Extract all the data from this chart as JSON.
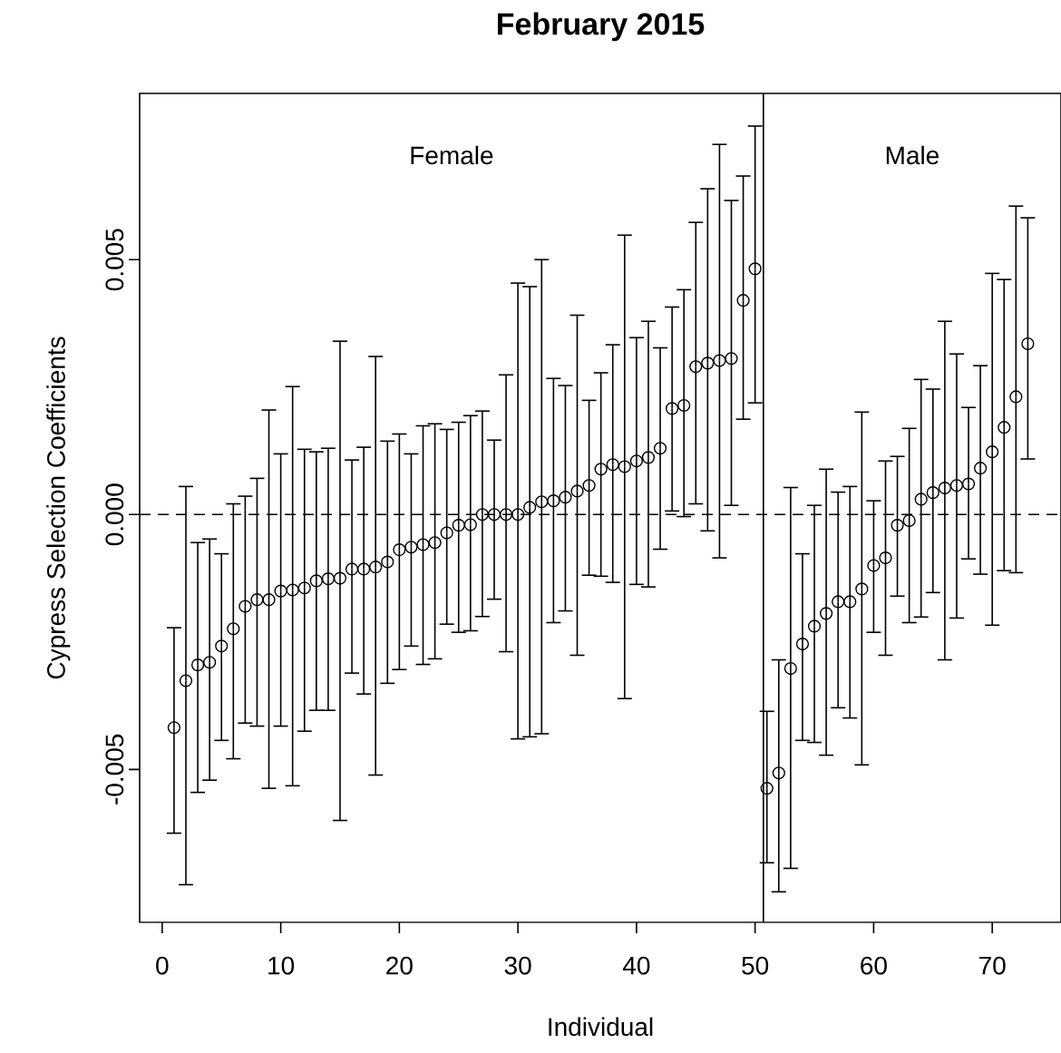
{
  "chart_data": {
    "type": "scatter",
    "title": "February 2015",
    "xlabel": "Individual",
    "ylabel": "Cypress Selection Coefficients",
    "annotations": [
      "Female",
      "Male"
    ],
    "x": [
      1,
      2,
      3,
      4,
      5,
      6,
      7,
      8,
      9,
      10,
      11,
      12,
      13,
      14,
      15,
      16,
      17,
      18,
      19,
      20,
      21,
      22,
      23,
      24,
      25,
      26,
      27,
      28,
      29,
      30,
      31,
      32,
      33,
      34,
      35,
      36,
      37,
      38,
      39,
      40,
      41,
      42,
      43,
      44,
      45,
      46,
      47,
      48,
      49,
      50,
      51,
      52,
      53,
      54,
      55,
      56,
      57,
      58,
      59,
      60,
      61,
      62,
      63,
      64,
      65,
      66,
      67,
      68,
      69,
      70,
      71,
      72,
      73
    ],
    "values": [
      -0.00418,
      -0.00326,
      -0.00295,
      -0.0029,
      -0.00258,
      -0.00224,
      -0.0018,
      -0.00167,
      -0.00167,
      -0.0015,
      -0.00148,
      -0.00144,
      -0.0013,
      -0.00126,
      -0.00125,
      -0.00107,
      -0.00107,
      -0.00103,
      -0.00093,
      -0.00069,
      -0.00064,
      -0.00059,
      -0.00055,
      -0.00036,
      -0.00021,
      -0.0002,
      0,
      0,
      0,
      0,
      0.00014,
      0.00025,
      0.00027,
      0.00034,
      0.00046,
      0.00057,
      0.00089,
      0.00098,
      0.00094,
      0.00105,
      0.00112,
      0.0013,
      0.00208,
      0.00214,
      0.0029,
      0.00297,
      0.00302,
      0.00306,
      0.0042,
      0.00482,
      -0.00537,
      -0.00507,
      -0.00302,
      -0.00254,
      -0.00219,
      -0.00194,
      -0.00171,
      -0.00171,
      -0.00146,
      -0.001,
      -0.00085,
      -0.00021,
      -0.00012,
      0.0003,
      0.00043,
      0.00052,
      0.00057,
      0.0006,
      0.00091,
      0.00123,
      0.00171,
      0.00231,
      0.00335
    ],
    "errors": [
      [
        -0.00625,
        -0.00222
      ],
      [
        -0.00726,
        0.00055
      ],
      [
        -0.00545,
        -0.00055
      ],
      [
        -0.00521,
        -0.00048
      ],
      [
        -0.00443,
        -0.00077
      ],
      [
        -0.00479,
        0.00021
      ],
      [
        -0.00409,
        0.00036
      ],
      [
        -0.00415,
        0.00071
      ],
      [
        -0.00537,
        0.00205
      ],
      [
        -0.00415,
        0.00119
      ],
      [
        -0.00532,
        0.00251
      ],
      [
        -0.00425,
        0.00128
      ],
      [
        -0.00384,
        0.00123
      ],
      [
        -0.00384,
        0.0013
      ],
      [
        -0.006,
        0.0034
      ],
      [
        -0.00311,
        0.00107
      ],
      [
        -0.00352,
        0.00132
      ],
      [
        -0.00511,
        0.0031
      ],
      [
        -0.00331,
        0.00144
      ],
      [
        -0.00304,
        0.00158
      ],
      [
        -0.00258,
        0.00119
      ],
      [
        -0.00294,
        0.00174
      ],
      [
        -0.00283,
        0.00178
      ],
      [
        -0.00215,
        0.00167
      ],
      [
        -0.00231,
        0.00181
      ],
      [
        -0.00228,
        0.00194
      ],
      [
        -0.002,
        0.00203
      ],
      [
        -0.00166,
        0.00146
      ],
      [
        -0.00269,
        0.00274
      ],
      [
        -0.0044,
        0.00454
      ],
      [
        -0.00436,
        0.00447
      ],
      [
        -0.0043,
        0.005
      ],
      [
        -0.00212,
        0.00267
      ],
      [
        -0.00189,
        0.00253
      ],
      [
        -0.00276,
        0.00391
      ],
      [
        -0.00119,
        0.00224
      ],
      [
        -0.00121,
        0.00278
      ],
      [
        -0.00133,
        0.00333
      ],
      [
        -0.00361,
        0.00548
      ],
      [
        -0.00137,
        0.00347
      ],
      [
        -0.00142,
        0.00379
      ],
      [
        -0.00068,
        0.00327
      ],
      [
        7e-05,
        0.00407
      ],
      [
        -4e-05,
        0.00441
      ],
      [
        0.00021,
        0.00573
      ],
      [
        -0.00032,
        0.00639
      ],
      [
        -0.00085,
        0.00726
      ],
      [
        0.00018,
        0.00616
      ],
      [
        0.00187,
        0.00664
      ],
      [
        0.00219,
        0.00762
      ],
      [
        -0.00683,
        -0.00386
      ],
      [
        -0.0074,
        -0.00285
      ],
      [
        -0.00694,
        0.00053
      ],
      [
        -0.00443,
        -0.00077
      ],
      [
        -0.00447,
        0.00018
      ],
      [
        -0.00472,
        0.00089
      ],
      [
        -0.00379,
        0.00044
      ],
      [
        -0.00399,
        0.00055
      ],
      [
        -0.00491,
        0.00201
      ],
      [
        -0.00231,
        0.00027
      ],
      [
        -0.00276,
        0.00105
      ],
      [
        -0.0016,
        0.00114
      ],
      [
        -0.00212,
        0.00169
      ],
      [
        -0.00201,
        0.00265
      ],
      [
        -0.00153,
        0.00246
      ],
      [
        -0.00285,
        0.00379
      ],
      [
        -0.00203,
        0.00315
      ],
      [
        -0.00087,
        0.0021
      ],
      [
        -0.00117,
        0.00292
      ],
      [
        -0.00217,
        0.00473
      ],
      [
        -0.0011,
        0.00461
      ],
      [
        -0.00114,
        0.00605
      ],
      [
        0.00109,
        0.00582
      ]
    ],
    "color": "#000000",
    "marker": "circle",
    "xlim": [
      -1.9,
      75.8
    ],
    "ylim": [
      -0.008,
      0.00826
    ],
    "xticks": [
      0,
      10,
      20,
      30,
      40,
      50,
      60,
      70
    ],
    "yticks": [
      {
        "value": -0.005,
        "label": "-0.005"
      },
      {
        "value": 0,
        "label": "0.000"
      },
      {
        "value": 0.005,
        "label": "0.005"
      }
    ],
    "ref_lines": [
      {
        "axis": "y",
        "value": 0,
        "line_style": "dashed",
        "color": "#000000"
      },
      {
        "axis": "x",
        "value": 50.7,
        "line_style": "solid",
        "color": "#000000"
      }
    ],
    "grid": false
  }
}
